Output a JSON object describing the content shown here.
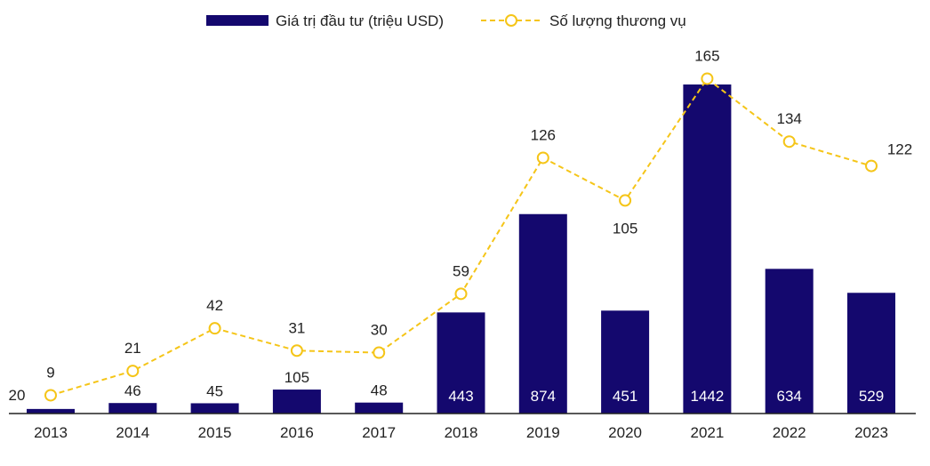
{
  "chart_data": {
    "type": "bar+line",
    "categories": [
      "2013",
      "2014",
      "2015",
      "2016",
      "2017",
      "2018",
      "2019",
      "2020",
      "2021",
      "2022",
      "2023"
    ],
    "series": [
      {
        "name": "Giá trị đầu tư (triệu USD)",
        "type": "bar",
        "axis": "left",
        "color": "#14086e",
        "values": [
          20,
          46,
          45,
          105,
          48,
          443,
          874,
          451,
          1442,
          634,
          529
        ]
      },
      {
        "name": "Số lượng thương vụ",
        "type": "line",
        "axis": "right",
        "color": "#f5c518",
        "style": "dashed",
        "marker": "hollow-circle",
        "values": [
          9,
          21,
          42,
          31,
          30,
          59,
          126,
          105,
          165,
          134,
          122
        ]
      }
    ],
    "title": "",
    "xlabel": "",
    "ylabel": "",
    "ylim_bar": [
      0,
      1442
    ],
    "ylim_line": [
      0,
      165
    ],
    "grid": false,
    "legend_position": "top"
  }
}
